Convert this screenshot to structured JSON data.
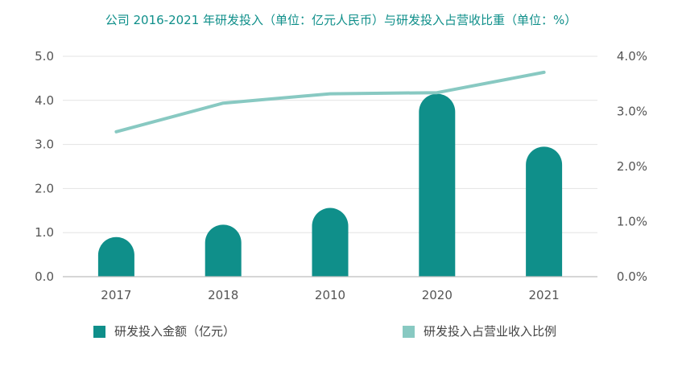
{
  "chart_data": {
    "type": "bar",
    "title": "公司 2016-2021 年研发投入（单位：亿元人民币）与研发投入占营收比重（单位：%）",
    "categories": [
      "2017",
      "2018",
      "2010",
      "2020",
      "2021"
    ],
    "series": [
      {
        "name": "研发投入金额（亿元）",
        "type": "bar",
        "axis": "left",
        "values": [
          0.9,
          1.18,
          1.56,
          4.15,
          2.95
        ]
      },
      {
        "name": "研发投入占营业收入比例",
        "type": "line",
        "axis": "right",
        "values": [
          2.63,
          3.15,
          3.32,
          3.34,
          3.71
        ]
      }
    ],
    "y_left": {
      "range": [
        0,
        5
      ],
      "ticks": [
        "0.0",
        "1.0",
        "2.0",
        "3.0",
        "4.0",
        "5.0"
      ]
    },
    "y_right": {
      "range": [
        0,
        4
      ],
      "ticks": [
        "0.0%",
        "1.0%",
        "2.0%",
        "3.0%",
        "4.0%"
      ]
    },
    "grid": true,
    "legend_position": "bottom",
    "colors": {
      "bar": "#0f8f8a",
      "line": "#88c9c2",
      "title": "#0f8f8a",
      "grid": "#e3e3e3",
      "axis": "#bdbdbd"
    }
  }
}
